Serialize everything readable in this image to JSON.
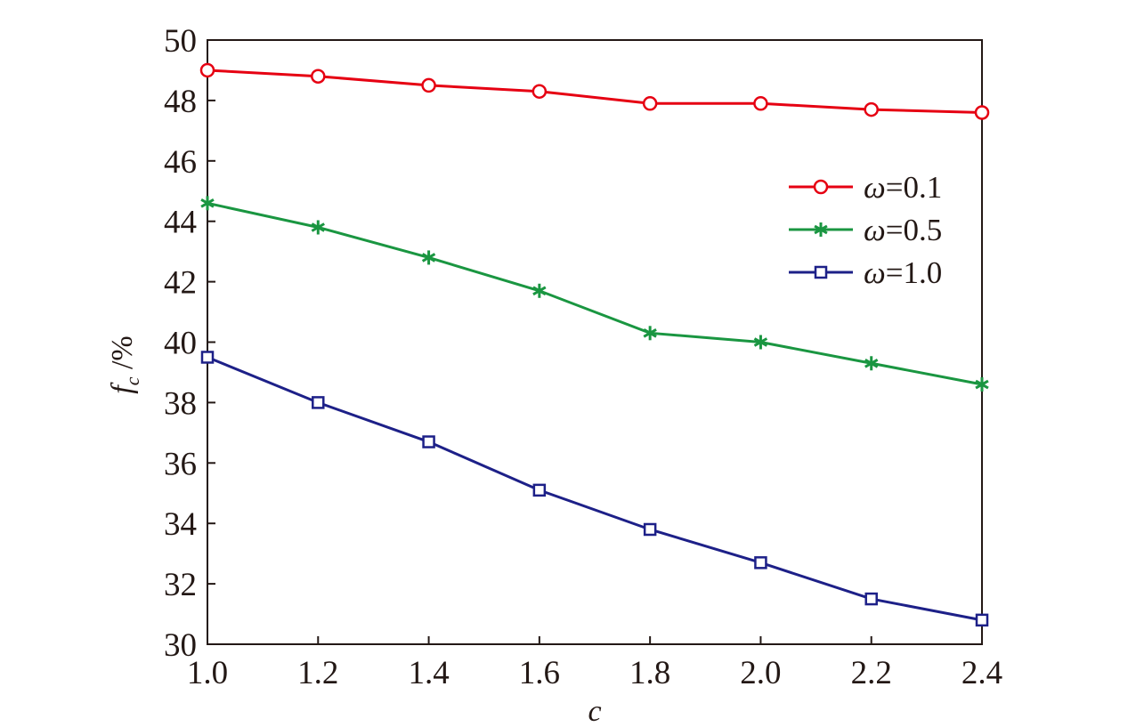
{
  "chart_data": {
    "type": "line",
    "x": [
      1.0,
      1.2,
      1.4,
      1.6,
      1.8,
      2.0,
      2.2,
      2.4
    ],
    "x_tick_labels": [
      "1.0",
      "1.2",
      "1.4",
      "1.6",
      "1.8",
      "2.0",
      "2.2",
      "2.4"
    ],
    "y_ticks": [
      30,
      32,
      34,
      36,
      38,
      40,
      42,
      44,
      46,
      48,
      50
    ],
    "xlim": [
      1.0,
      2.4
    ],
    "ylim": [
      30,
      50
    ],
    "xlabel": "c",
    "ylabel": {
      "main": "f",
      "sub": "c",
      "unit": " /%"
    },
    "grid": false,
    "legend_position": "upper-right",
    "series": [
      {
        "name": "ω=0.1",
        "name_symbol": "ω",
        "name_value": "=0.1",
        "color": "#e60012",
        "marker": "circle",
        "values": [
          49.0,
          48.8,
          48.5,
          48.3,
          47.9,
          47.9,
          47.7,
          47.6
        ]
      },
      {
        "name": "ω=0.5",
        "name_symbol": "ω",
        "name_value": "=0.5",
        "color": "#1a9641",
        "marker": "asterisk",
        "values": [
          44.6,
          43.8,
          42.8,
          41.7,
          40.3,
          40.0,
          39.3,
          38.6
        ]
      },
      {
        "name": "ω=1.0",
        "name_symbol": "ω",
        "name_value": "=1.0",
        "color": "#1d2088",
        "marker": "square",
        "values": [
          39.5,
          38.0,
          36.7,
          35.1,
          33.8,
          32.7,
          31.5,
          30.8
        ]
      }
    ]
  }
}
